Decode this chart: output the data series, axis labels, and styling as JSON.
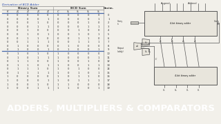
{
  "title": "ADDERS, MULTIPLIERS & COMPARATORS",
  "title_bg": "#8B1A2A",
  "title_color": "#FFFFFF",
  "title_fontsize": 9.5,
  "top_label": "Derivation of BCD Adder",
  "background_color": "#F2F0EA",
  "table_header_binary": "Binary Sum",
  "table_header_bcd": "BCD Sum",
  "table_header_decimal": "Decim.",
  "col_headers": [
    "K",
    "Z8",
    "Z4",
    "Z2",
    "Z1",
    "C",
    "S8",
    "S4",
    "S2",
    "S1"
  ],
  "data_rows": [
    [
      0,
      0,
      0,
      0,
      0,
      0,
      0,
      0,
      0,
      0,
      0
    ],
    [
      0,
      0,
      0,
      0,
      1,
      0,
      0,
      0,
      0,
      1,
      1
    ],
    [
      0,
      0,
      0,
      1,
      0,
      0,
      0,
      0,
      1,
      0,
      2
    ],
    [
      0,
      0,
      0,
      1,
      1,
      0,
      0,
      0,
      1,
      1,
      3
    ],
    [
      0,
      0,
      1,
      0,
      0,
      0,
      0,
      1,
      0,
      0,
      4
    ],
    [
      0,
      0,
      1,
      0,
      1,
      0,
      0,
      1,
      0,
      1,
      5
    ],
    [
      0,
      0,
      1,
      1,
      0,
      0,
      0,
      1,
      1,
      0,
      6
    ],
    [
      0,
      0,
      1,
      1,
      1,
      0,
      0,
      1,
      1,
      1,
      7
    ],
    [
      0,
      1,
      0,
      0,
      0,
      0,
      1,
      0,
      0,
      0,
      8
    ],
    [
      0,
      1,
      0,
      0,
      1,
      0,
      1,
      0,
      0,
      1,
      9
    ],
    [
      0,
      1,
      0,
      1,
      0,
      1,
      0,
      0,
      0,
      0,
      10
    ],
    [
      0,
      1,
      0,
      1,
      1,
      1,
      0,
      0,
      0,
      1,
      11
    ],
    [
      0,
      1,
      1,
      0,
      0,
      1,
      0,
      0,
      1,
      0,
      12
    ],
    [
      0,
      1,
      1,
      0,
      1,
      1,
      0,
      0,
      1,
      1,
      13
    ],
    [
      0,
      1,
      1,
      1,
      0,
      1,
      0,
      1,
      0,
      0,
      14
    ],
    [
      0,
      1,
      1,
      1,
      1,
      1,
      0,
      1,
      0,
      1,
      15
    ],
    [
      1,
      0,
      0,
      0,
      0,
      1,
      0,
      1,
      1,
      0,
      16
    ],
    [
      1,
      0,
      0,
      0,
      1,
      1,
      0,
      1,
      1,
      1,
      17
    ],
    [
      1,
      0,
      0,
      1,
      0,
      1,
      1,
      0,
      0,
      0,
      18
    ],
    [
      1,
      0,
      0,
      1,
      1,
      1,
      1,
      0,
      0,
      1,
      19
    ]
  ],
  "line_color": "#888888",
  "blue_line": "#4466AA",
  "text_color": "#333333",
  "circuit_box_color": "#E8E5DC",
  "circuit_line_color": "#555555"
}
